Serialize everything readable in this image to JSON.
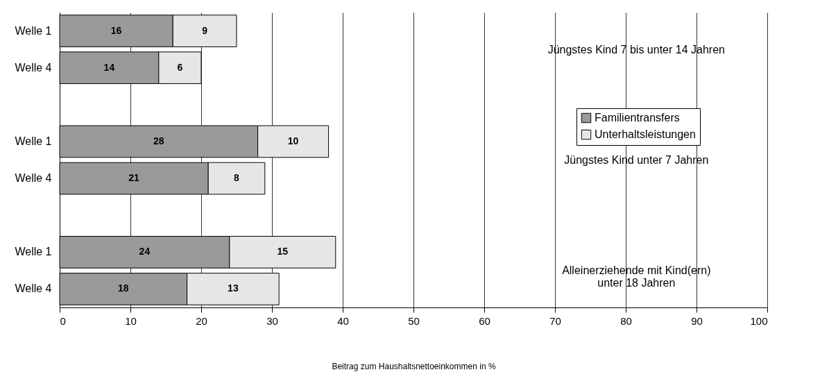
{
  "chart_data": {
    "type": "bar",
    "orientation": "horizontal",
    "stacked": true,
    "xlabel": "Beitrag zum Haushaltsnettoeinkommen in %",
    "categories": [
      "Welle 1",
      "Welle 4",
      null,
      "Welle 1",
      "Welle 4",
      null,
      "Welle 1",
      "Welle 4"
    ],
    "series": [
      {
        "name": "Familientransfers",
        "color": "#9a9a9a",
        "values": [
          16,
          14,
          null,
          28,
          21,
          null,
          24,
          18
        ]
      },
      {
        "name": "Unterhaltsleistungen",
        "color": "#e6e6e6",
        "values": [
          9,
          6,
          null,
          10,
          8,
          null,
          15,
          13
        ]
      }
    ],
    "xlim": [
      0,
      100
    ],
    "xticks": [
      0,
      10,
      20,
      30,
      40,
      50,
      60,
      70,
      80,
      90,
      100
    ],
    "grid": "x",
    "legend": "right",
    "data_labels": true,
    "annotations": [
      "Jüngstes Kind 7 bis unter 14 Jahren",
      "Jüngstes Kind  unter 7 Jahren",
      "Alleinerziehende mit Kind(ern)\nunter 18 Jahren"
    ]
  }
}
